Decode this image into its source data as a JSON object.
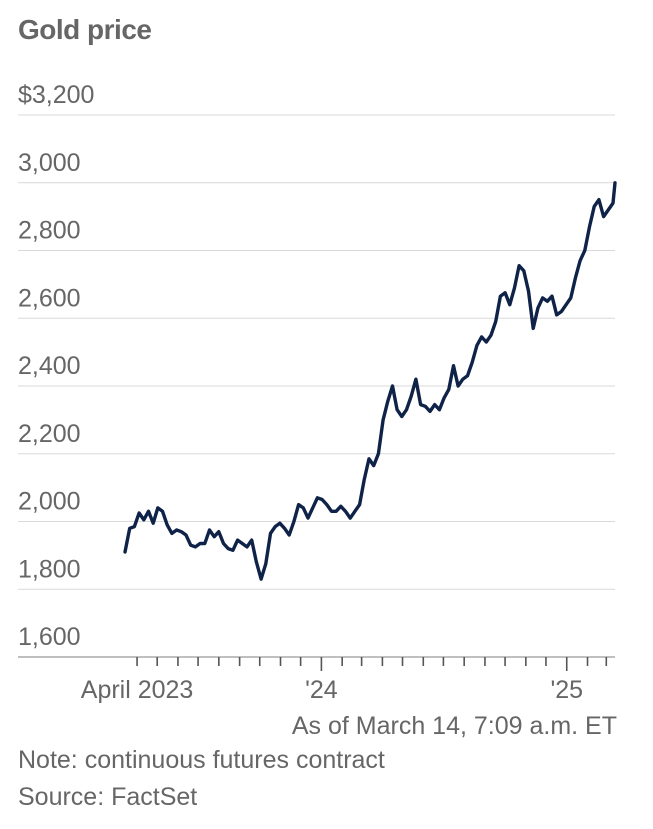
{
  "title": "Gold price",
  "as_of": "As of March 14, 7:09 a.m. ET",
  "note": "Note: continuous futures contract",
  "source": "Source: FactSet",
  "chart_data": {
    "type": "line",
    "title": "Gold price",
    "xlabel": "",
    "ylabel": "",
    "ylim": [
      1600,
      3200
    ],
    "y_ticks": [
      1600,
      1800,
      2000,
      2200,
      2400,
      2600,
      2800,
      3000,
      3200
    ],
    "y_tick_labels": [
      "1,600",
      "1,800",
      "2,000",
      "2,200",
      "2,400",
      "2,600",
      "2,800",
      "3,000",
      "$3,200"
    ],
    "x_range": [
      "2023-03-14",
      "2025-03-14"
    ],
    "x_tick_labels": [
      {
        "date": "2023-04-01",
        "label": "April 2023"
      },
      {
        "date": "2024-01-01",
        "label": "'24"
      },
      {
        "date": "2025-01-01",
        "label": "'25"
      }
    ],
    "grid": true,
    "line_color": "#0f2248",
    "series": [
      {
        "x": [
          "2023-03-14",
          "2023-03-21",
          "2023-03-28",
          "2023-04-04",
          "2023-04-11",
          "2023-04-18",
          "2023-04-25",
          "2023-05-02",
          "2023-05-09",
          "2023-05-16",
          "2023-05-23",
          "2023-05-30",
          "2023-06-06",
          "2023-06-13",
          "2023-06-20",
          "2023-06-27",
          "2023-07-04",
          "2023-07-11",
          "2023-07-18",
          "2023-07-25",
          "2023-08-01",
          "2023-08-08",
          "2023-08-15",
          "2023-08-22",
          "2023-08-29",
          "2023-09-05",
          "2023-09-12",
          "2023-09-19",
          "2023-09-26",
          "2023-10-03",
          "2023-10-10",
          "2023-10-17",
          "2023-10-24",
          "2023-10-31",
          "2023-11-07",
          "2023-11-14",
          "2023-11-21",
          "2023-11-28",
          "2023-12-05",
          "2023-12-12",
          "2023-12-19",
          "2023-12-26",
          "2024-01-02",
          "2024-01-09",
          "2024-01-16",
          "2024-01-23",
          "2024-01-30",
          "2024-02-06",
          "2024-02-13",
          "2024-02-20",
          "2024-02-27",
          "2024-03-05",
          "2024-03-12",
          "2024-03-19",
          "2024-03-26",
          "2024-04-02",
          "2024-04-09",
          "2024-04-16",
          "2024-04-23",
          "2024-04-30",
          "2024-05-07",
          "2024-05-14",
          "2024-05-21",
          "2024-05-28",
          "2024-06-04",
          "2024-06-11",
          "2024-06-18",
          "2024-06-25",
          "2024-07-02",
          "2024-07-09",
          "2024-07-16",
          "2024-07-23",
          "2024-07-30",
          "2024-08-06",
          "2024-08-13",
          "2024-08-20",
          "2024-08-27",
          "2024-09-03",
          "2024-09-10",
          "2024-09-17",
          "2024-09-24",
          "2024-10-01",
          "2024-10-08",
          "2024-10-15",
          "2024-10-22",
          "2024-10-29",
          "2024-11-05",
          "2024-11-12",
          "2024-11-19",
          "2024-11-26",
          "2024-12-03",
          "2024-12-10",
          "2024-12-17",
          "2024-12-24",
          "2024-12-31",
          "2025-01-07",
          "2025-01-14",
          "2025-01-21",
          "2025-01-28",
          "2025-02-04",
          "2025-02-11",
          "2025-02-18",
          "2025-02-25",
          "2025-03-04",
          "2025-03-11",
          "2025-03-14"
        ],
        "y": [
          1910,
          1980,
          1985,
          2025,
          2005,
          2030,
          1995,
          2040,
          2030,
          1990,
          1965,
          1975,
          1970,
          1960,
          1930,
          1925,
          1935,
          1935,
          1975,
          1955,
          1970,
          1935,
          1920,
          1915,
          1945,
          1935,
          1925,
          1945,
          1880,
          1830,
          1875,
          1965,
          1985,
          1995,
          1980,
          1960,
          2000,
          2050,
          2040,
          2010,
          2040,
          2070,
          2065,
          2050,
          2030,
          2030,
          2045,
          2030,
          2010,
          2030,
          2050,
          2125,
          2185,
          2165,
          2200,
          2300,
          2355,
          2400,
          2330,
          2310,
          2330,
          2370,
          2420,
          2345,
          2340,
          2325,
          2345,
          2330,
          2365,
          2390,
          2460,
          2400,
          2420,
          2430,
          2470,
          2520,
          2545,
          2530,
          2550,
          2590,
          2665,
          2675,
          2640,
          2690,
          2755,
          2740,
          2680,
          2570,
          2630,
          2660,
          2650,
          2665,
          2610,
          2620,
          2640,
          2660,
          2720,
          2770,
          2800,
          2870,
          2930,
          2950,
          2900,
          2920,
          2940,
          3000
        ]
      }
    ]
  }
}
